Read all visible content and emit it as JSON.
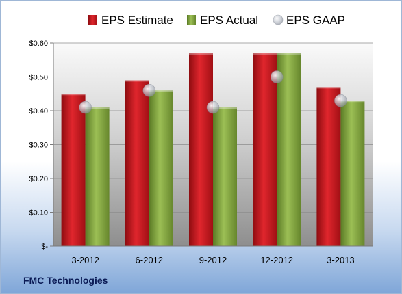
{
  "chart_data": {
    "type": "bar",
    "categories": [
      "3-2012",
      "6-2012",
      "9-2012",
      "12-2012",
      "3-2013"
    ],
    "series": [
      {
        "name": "EPS Estimate",
        "kind": "bar",
        "color": "#c0141b",
        "values": [
          0.45,
          0.49,
          0.57,
          0.57,
          0.47
        ]
      },
      {
        "name": "EPS Actual",
        "kind": "bar",
        "color": "#7e9f3d",
        "values": [
          0.41,
          0.46,
          0.41,
          0.57,
          0.43
        ]
      },
      {
        "name": "EPS GAAP",
        "kind": "marker",
        "color": "#b9c0cc",
        "values": [
          0.41,
          0.46,
          0.41,
          0.5,
          0.43
        ]
      }
    ],
    "ylim": [
      0,
      0.6
    ],
    "yticks": [
      0,
      0.1,
      0.2,
      0.3,
      0.4,
      0.5,
      0.6
    ],
    "ytick_labels": [
      "$-",
      "$0.10",
      "$0.20",
      "$0.30",
      "$0.40",
      "$0.50",
      "$0.60"
    ],
    "grid": true,
    "legend_position": "top"
  },
  "footer": {
    "company": "FMC Technologies"
  }
}
